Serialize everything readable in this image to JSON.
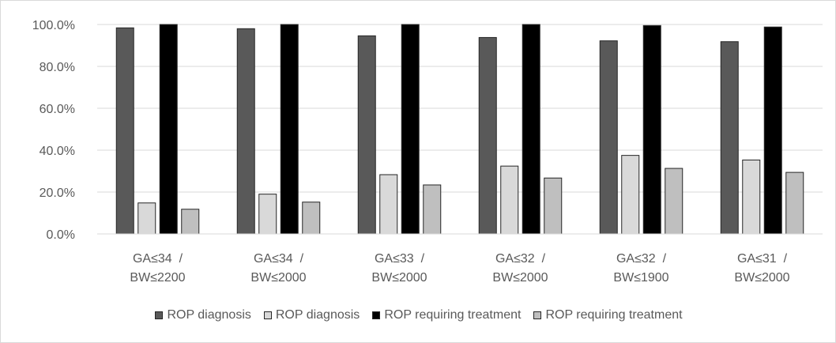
{
  "chart_data": {
    "type": "bar",
    "categories": [
      [
        "GA≤34  /",
        "BW≤2200"
      ],
      [
        "GA≤34  /",
        "BW≤2000"
      ],
      [
        "GA≤33  /",
        "BW≤2000"
      ],
      [
        "GA≤32  /",
        "BW≤2000"
      ],
      [
        "GA≤32  /",
        "BW≤1900"
      ],
      [
        "GA≤31  /",
        "BW≤2000"
      ]
    ],
    "series": [
      {
        "name": "ROP diagnosis",
        "color": "#595959",
        "values": [
          98.4,
          98.0,
          94.6,
          93.8,
          92.2,
          91.8
        ]
      },
      {
        "name": "ROP diagnosis",
        "color": "#d9d9d9",
        "values": [
          14.8,
          19.0,
          28.3,
          32.4,
          37.5,
          35.3
        ]
      },
      {
        "name": "ROP requiring treatment",
        "color": "#000000",
        "values": [
          100.0,
          100.0,
          100.0,
          100.0,
          99.5,
          98.8
        ]
      },
      {
        "name": "ROP requiring treatment",
        "color": "#bfbfbf",
        "values": [
          11.8,
          15.2,
          23.4,
          26.7,
          31.3,
          29.4
        ]
      }
    ],
    "yticks": [
      "0.0%",
      "20.0%",
      "40.0%",
      "60.0%",
      "80.0%",
      "100.0%"
    ],
    "ylim": [
      0,
      100
    ],
    "grid": true,
    "legend_position": "bottom",
    "title": "",
    "xlabel": "",
    "ylabel": ""
  }
}
